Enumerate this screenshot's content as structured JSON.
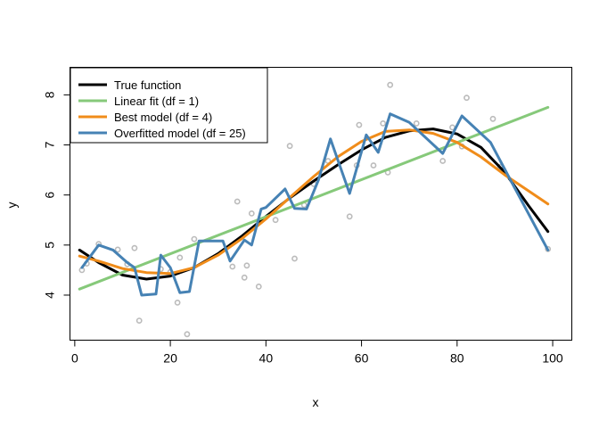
{
  "chart_data": {
    "type": "scatter",
    "title": "",
    "xlabel": "x",
    "ylabel": "y",
    "xlim": [
      -1,
      104
    ],
    "ylim": [
      3.1,
      8.55
    ],
    "x_ticks": [
      0,
      20,
      40,
      60,
      80,
      100
    ],
    "y_ticks": [
      4,
      5,
      6,
      7,
      8
    ],
    "grid": false,
    "legend_position": "top-left",
    "points": {
      "color": "#bbbbbb",
      "x": [
        1.5,
        2.5,
        5,
        9,
        11,
        12.5,
        13.5,
        18,
        20,
        21.5,
        22,
        23.5,
        25,
        33,
        34,
        35.5,
        36,
        37,
        38.5,
        42,
        45,
        46,
        48,
        50,
        53,
        57.5,
        59,
        59.5,
        62.5,
        64.5,
        65.5,
        66,
        71.5,
        77,
        79,
        81,
        82,
        87.5,
        89,
        99
      ],
      "y": [
        4.5,
        4.63,
        5.02,
        4.91,
        4.62,
        4.94,
        3.49,
        4.52,
        4.46,
        3.85,
        4.75,
        3.22,
        5.12,
        4.57,
        5.87,
        4.35,
        4.59,
        5.63,
        4.17,
        5.5,
        6.98,
        4.73,
        5.8,
        6.22,
        6.68,
        5.57,
        6.59,
        7.4,
        6.59,
        7.43,
        6.45,
        8.2,
        7.43,
        6.68,
        7.35,
        6.97,
        7.94,
        7.52,
        6.56,
        4.92
      ]
    },
    "series": [
      {
        "name": "True function",
        "color": "#000000",
        "x": [
          1,
          5,
          10,
          15,
          20,
          25,
          30,
          35,
          40,
          45,
          50,
          55,
          60,
          65,
          70,
          75,
          80,
          85,
          90,
          95,
          99
        ],
        "y": [
          4.9,
          4.65,
          4.4,
          4.32,
          4.38,
          4.55,
          4.83,
          5.18,
          5.57,
          5.94,
          6.28,
          6.6,
          6.9,
          7.15,
          7.28,
          7.32,
          7.22,
          6.95,
          6.45,
          5.78,
          5.27
        ]
      },
      {
        "name": "Linear fit (df = 1)",
        "color": "#86c97a",
        "x": [
          1,
          99
        ],
        "y": [
          4.12,
          7.75
        ]
      },
      {
        "name": "Best model (df = 4)",
        "color": "#f08c1a",
        "x": [
          1,
          5,
          10,
          15,
          20,
          25,
          30,
          35,
          40,
          45,
          50,
          55,
          60,
          65,
          70,
          75,
          80,
          85,
          90,
          95,
          99
        ],
        "y": [
          4.78,
          4.68,
          4.53,
          4.45,
          4.43,
          4.55,
          4.8,
          5.13,
          5.52,
          5.95,
          6.37,
          6.76,
          7.07,
          7.27,
          7.3,
          7.23,
          7.05,
          6.76,
          6.4,
          6.08,
          5.82
        ]
      },
      {
        "name": "Overfitted model (df = 25)",
        "color": "#4682b4",
        "x": [
          1.5,
          5,
          8,
          11,
          12.5,
          14,
          17,
          18,
          20,
          22,
          24,
          26,
          31,
          32.5,
          35.5,
          37,
          39,
          40,
          44,
          46,
          48.5,
          51,
          53.5,
          57.5,
          61,
          63.5,
          66,
          70,
          77,
          81,
          87,
          92,
          99
        ],
        "y": [
          4.55,
          5.0,
          4.9,
          4.65,
          4.55,
          4.0,
          4.02,
          4.8,
          4.55,
          4.05,
          4.07,
          5.08,
          5.08,
          4.68,
          5.1,
          5.0,
          5.72,
          5.75,
          6.12,
          5.73,
          5.72,
          6.3,
          7.12,
          6.03,
          7.2,
          6.85,
          7.62,
          7.45,
          6.83,
          7.58,
          7.05,
          6.15,
          4.9
        ]
      }
    ]
  }
}
